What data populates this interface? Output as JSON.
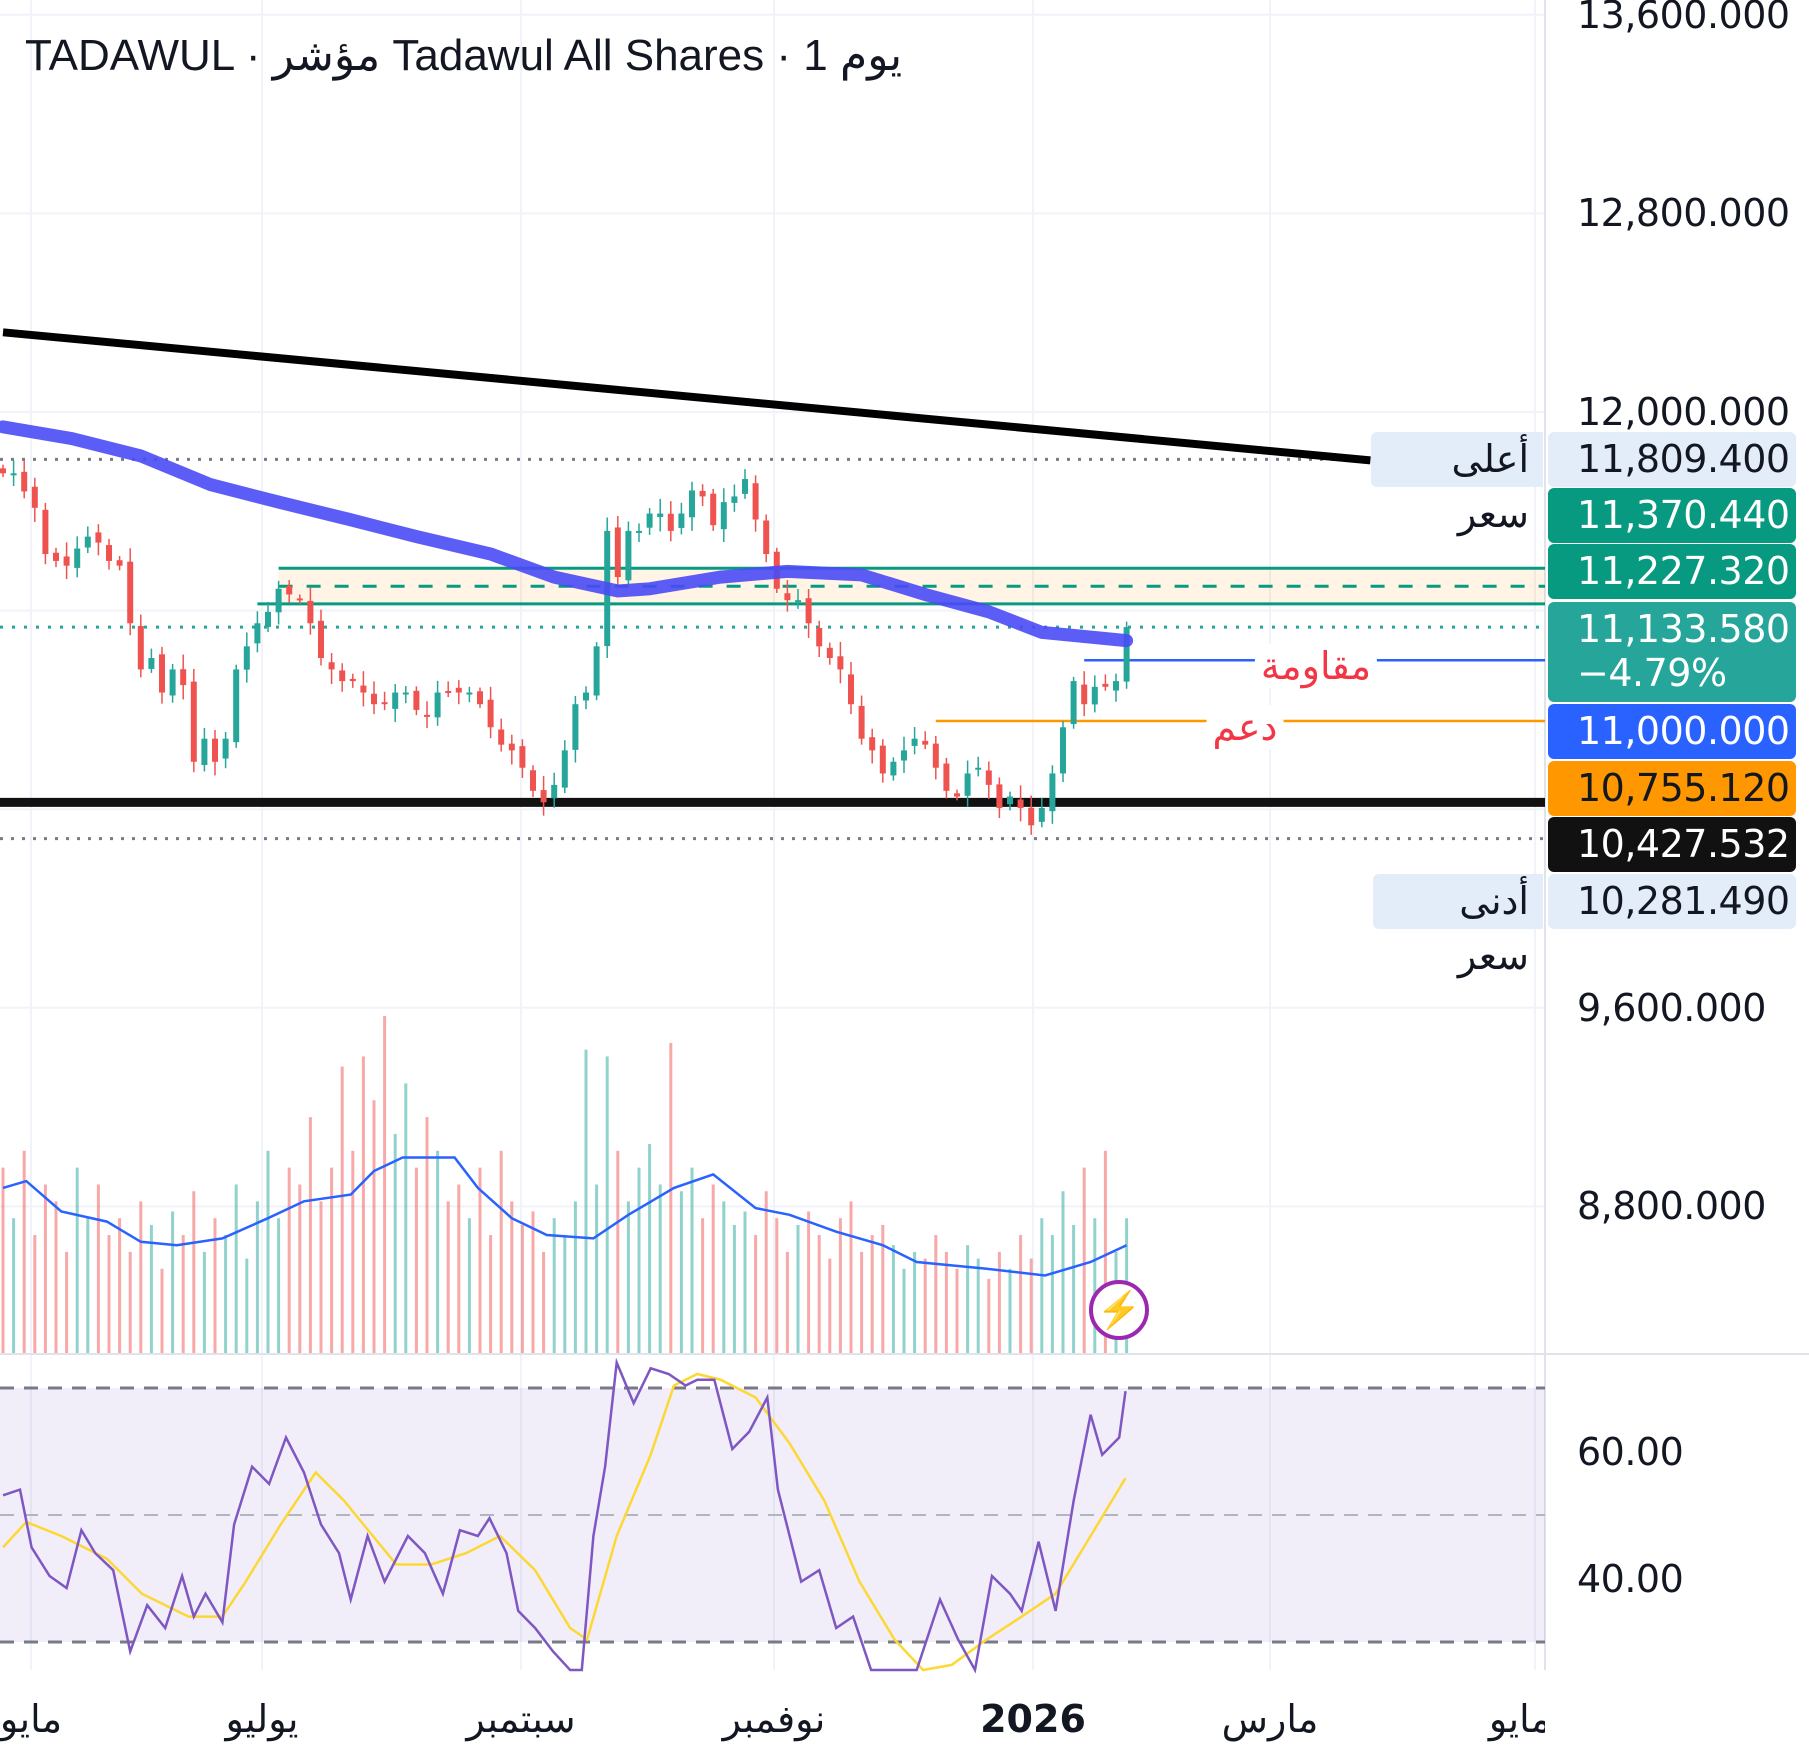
{
  "header": {
    "title": "TADAWUL · مؤشر Tadawul All Shares · 1 يوم"
  },
  "colors": {
    "up": "#26a69a",
    "down": "#ef5350",
    "ma200": "#4a4af5",
    "trendline": "#000000",
    "rsi": "#7e57c2",
    "rsi_ma": "#fdd835",
    "vol_ma": "#2962ff",
    "zone": "#089981",
    "resistance": "#2962ff",
    "support": "#ff9800"
  },
  "price_axis": {
    "ticks": [
      "13,600.000",
      "12,800.000",
      "12,000.000",
      "9,600.000",
      "8,800.000"
    ],
    "tick_values": [
      13600,
      12800,
      12000,
      9600,
      8800
    ]
  },
  "rsi_axis": {
    "ticks": [
      "60.00",
      "40.00"
    ],
    "tick_values": [
      60,
      40
    ]
  },
  "time_axis": {
    "labels": [
      "مايو",
      "يوليو",
      "سبتمبر",
      "نوفمبر",
      "2026",
      "مارس",
      "مايو"
    ]
  },
  "price_labels": {
    "high": {
      "tag": "أعلى سعر",
      "value": "11,809.400"
    },
    "zone_top": {
      "value": "11,370.440"
    },
    "zone_bottom": {
      "value": "11,227.320"
    },
    "last": {
      "value": "11,133.580",
      "change": "−4.79%"
    },
    "resistance": {
      "value": "11,000.000"
    },
    "support": {
      "value": "10,755.120"
    },
    "base": {
      "value": "10,427.532"
    },
    "low": {
      "tag": "أدنى سعر",
      "value": "10,281.490"
    }
  },
  "annotations": {
    "resistance": "مقاومة",
    "support": "دعم"
  },
  "chart_data": {
    "type": "candlestick",
    "title": "TADAWUL · Tadawul All Shares · 1D",
    "ylim": [
      8400,
      13700
    ],
    "closes": [
      11753,
      11753,
      11680,
      11614,
      11428,
      11400,
      11381,
      11450,
      11498,
      11474,
      11400,
      11381,
      11149,
      10963,
      11009,
      10870,
      10963,
      10900,
      10591,
      10684,
      10591,
      10684,
      10963,
      11056,
      11149,
      11195,
      11288,
      11265,
      11242,
      11149,
      11009,
      10963,
      10916,
      10916,
      10870,
      10823,
      10823,
      10870,
      10870,
      10800,
      10777,
      10870,
      10870,
      10870,
      10870,
      10823,
      10730,
      10660,
      10637,
      10567,
      10474,
      10428,
      10498,
      10637,
      10823,
      10870,
      11056,
      11521,
      11335,
      11521,
      11521,
      11591,
      11591,
      11521,
      11591,
      11684,
      11660,
      11544,
      11637,
      11660,
      11730,
      11567,
      11428,
      11288,
      11242,
      11242,
      11149,
      11056,
      11009,
      10963,
      10823,
      10684,
      10637,
      10544,
      10591,
      10637,
      10684,
      10660,
      10567,
      10474,
      10451,
      10544,
      10567,
      10498,
      10405,
      10451,
      10405,
      10335,
      10405,
      10544,
      10730,
      10916,
      10823,
      10893,
      10893,
      10916,
      11133.58
    ],
    "volume": [
      55,
      40,
      60,
      35,
      50,
      45,
      30,
      55,
      40,
      50,
      35,
      40,
      30,
      45,
      38,
      25,
      42,
      35,
      48,
      30,
      40,
      35,
      50,
      28,
      45,
      60,
      40,
      55,
      50,
      70,
      45,
      55,
      85,
      60,
      88,
      75,
      100,
      65,
      80,
      55,
      70,
      60,
      45,
      50,
      40,
      55,
      35,
      60,
      45,
      38,
      42,
      30,
      40,
      35,
      45,
      90,
      50,
      88,
      60,
      45,
      55,
      62,
      50,
      92,
      48,
      55,
      40,
      50,
      45,
      38,
      42,
      35,
      48,
      40,
      30,
      38,
      42,
      35,
      28,
      40,
      45,
      30,
      35,
      38,
      32,
      25,
      30,
      28,
      35,
      30,
      25,
      32,
      28,
      22,
      30,
      25,
      35,
      28,
      40,
      35,
      48,
      38,
      55,
      40,
      60,
      30,
      40
    ],
    "volume_ma": [
      [
        0,
        49
      ],
      [
        2.2,
        51
      ],
      [
        5.5,
        42
      ],
      [
        9.8,
        39
      ],
      [
        13,
        33
      ],
      [
        16.4,
        32
      ],
      [
        20.7,
        34
      ],
      [
        25,
        40
      ],
      [
        28.4,
        45
      ],
      [
        32.8,
        47
      ],
      [
        35,
        54
      ],
      [
        37.7,
        58
      ],
      [
        42.6,
        58
      ],
      [
        44.8,
        49
      ],
      [
        48,
        40
      ],
      [
        51.3,
        35
      ],
      [
        55.7,
        34
      ],
      [
        59,
        41
      ],
      [
        63.3,
        49
      ],
      [
        67,
        53
      ],
      [
        71,
        43
      ],
      [
        74.2,
        41
      ],
      [
        78.6,
        36
      ],
      [
        83,
        32
      ],
      [
        86.2,
        27
      ],
      [
        92.8,
        25
      ],
      [
        98.3,
        23
      ],
      [
        102.6,
        27
      ],
      [
        106,
        32
      ]
    ],
    "ma200": [
      [
        0,
        11940
      ],
      [
        6.5,
        11893
      ],
      [
        13,
        11823
      ],
      [
        19.6,
        11707
      ],
      [
        26,
        11637
      ],
      [
        32.7,
        11567
      ],
      [
        39,
        11498
      ],
      [
        46,
        11428
      ],
      [
        52,
        11335
      ],
      [
        58,
        11279
      ],
      [
        61,
        11288
      ],
      [
        67.7,
        11335
      ],
      [
        74,
        11358
      ],
      [
        81,
        11344
      ],
      [
        87,
        11265
      ],
      [
        93,
        11195
      ],
      [
        98,
        11112
      ],
      [
        106,
        11079
      ]
    ],
    "trendline": [
      [
        0,
        12321
      ],
      [
        129,
        11805
      ]
    ],
    "levels": {
      "high": 11809.4,
      "zone_top": 11370.44,
      "zone_mid": 11298,
      "zone_bottom": 11227.32,
      "last": 11133.58,
      "resistance": 11000,
      "support": 10755.12,
      "base": 10427.532,
      "low": 10281.49
    },
    "resistance_from": 102,
    "support_from": 88,
    "rsi": [
      [
        0,
        53.1
      ],
      [
        1.6,
        54
      ],
      [
        2.7,
        44.9
      ],
      [
        4.4,
        40.4
      ],
      [
        6,
        38.5
      ],
      [
        7.4,
        47.6
      ],
      [
        8.7,
        44
      ],
      [
        10.4,
        41.3
      ],
      [
        12,
        28.5
      ],
      [
        13.6,
        35.8
      ],
      [
        15.3,
        32.2
      ],
      [
        16.9,
        40.4
      ],
      [
        18,
        34
      ],
      [
        19.1,
        37.6
      ],
      [
        20.7,
        33.1
      ],
      [
        21.8,
        48.5
      ],
      [
        23.5,
        57.6
      ],
      [
        25.1,
        54.9
      ],
      [
        26.7,
        62.2
      ],
      [
        28.4,
        56.7
      ],
      [
        30,
        48.5
      ],
      [
        31.7,
        44
      ],
      [
        32.8,
        36.7
      ],
      [
        34.4,
        46.7
      ],
      [
        36,
        39.5
      ],
      [
        38.2,
        46.7
      ],
      [
        39.8,
        44
      ],
      [
        41.5,
        37.6
      ],
      [
        43.1,
        47.6
      ],
      [
        44.8,
        46.7
      ],
      [
        45.9,
        49.5
      ],
      [
        47.5,
        44
      ],
      [
        48.6,
        34.9
      ],
      [
        50.2,
        32.2
      ],
      [
        51.9,
        28.5
      ],
      [
        53.5,
        22
      ],
      [
        54.6,
        22
      ],
      [
        55.7,
        46.7
      ],
      [
        56.8,
        57.6
      ],
      [
        57.9,
        74
      ],
      [
        59.5,
        67.6
      ],
      [
        61.1,
        73.1
      ],
      [
        62.8,
        72.2
      ],
      [
        64.4,
        70.4
      ],
      [
        65.5,
        71.3
      ],
      [
        67.1,
        71.3
      ],
      [
        68.8,
        60.4
      ],
      [
        70.4,
        63.1
      ],
      [
        72.1,
        68.5
      ],
      [
        73.1,
        54
      ],
      [
        75.3,
        39.5
      ],
      [
        77,
        41.3
      ],
      [
        78.6,
        32.2
      ],
      [
        80.2,
        34
      ],
      [
        81.9,
        24
      ],
      [
        86.2,
        24
      ],
      [
        88.4,
        36.7
      ],
      [
        90.1,
        30.4
      ],
      [
        91.7,
        24
      ],
      [
        93.3,
        40.4
      ],
      [
        95,
        37.6
      ],
      [
        96.1,
        34.9
      ],
      [
        97.7,
        45.8
      ],
      [
        99.3,
        34.9
      ],
      [
        101,
        52.2
      ],
      [
        102.6,
        65.8
      ],
      [
        103.7,
        59.5
      ],
      [
        105.3,
        62.2
      ],
      [
        105.9,
        69.5
      ]
    ],
    "rsi_ma": [
      [
        0,
        44.9
      ],
      [
        2.2,
        48.9
      ],
      [
        5.5,
        46.7
      ],
      [
        9.8,
        43.1
      ],
      [
        13.1,
        37.6
      ],
      [
        17.5,
        34
      ],
      [
        20.7,
        34
      ],
      [
        22.9,
        39.5
      ],
      [
        26.2,
        48.5
      ],
      [
        29.5,
        56.7
      ],
      [
        32.2,
        52.2
      ],
      [
        34.9,
        46.7
      ],
      [
        37.1,
        42.2
      ],
      [
        40.4,
        42.2
      ],
      [
        43.7,
        44
      ],
      [
        46.9,
        46.7
      ],
      [
        50.2,
        41.3
      ],
      [
        53.5,
        32.2
      ],
      [
        55.1,
        30.4
      ],
      [
        57.9,
        46.7
      ],
      [
        61.1,
        59.5
      ],
      [
        63.3,
        70.4
      ],
      [
        65.5,
        72.2
      ],
      [
        67.7,
        71.3
      ],
      [
        71,
        68.5
      ],
      [
        74.2,
        61.3
      ],
      [
        77.5,
        52.2
      ],
      [
        80.8,
        39.5
      ],
      [
        84.1,
        30.4
      ],
      [
        86.8,
        25
      ],
      [
        89.5,
        26.4
      ],
      [
        92.8,
        30.4
      ],
      [
        96.1,
        34
      ],
      [
        99.3,
        37.6
      ],
      [
        102.6,
        46.7
      ],
      [
        105.9,
        55.8
      ]
    ],
    "rsi_levels": [
      70,
      50,
      30
    ]
  }
}
